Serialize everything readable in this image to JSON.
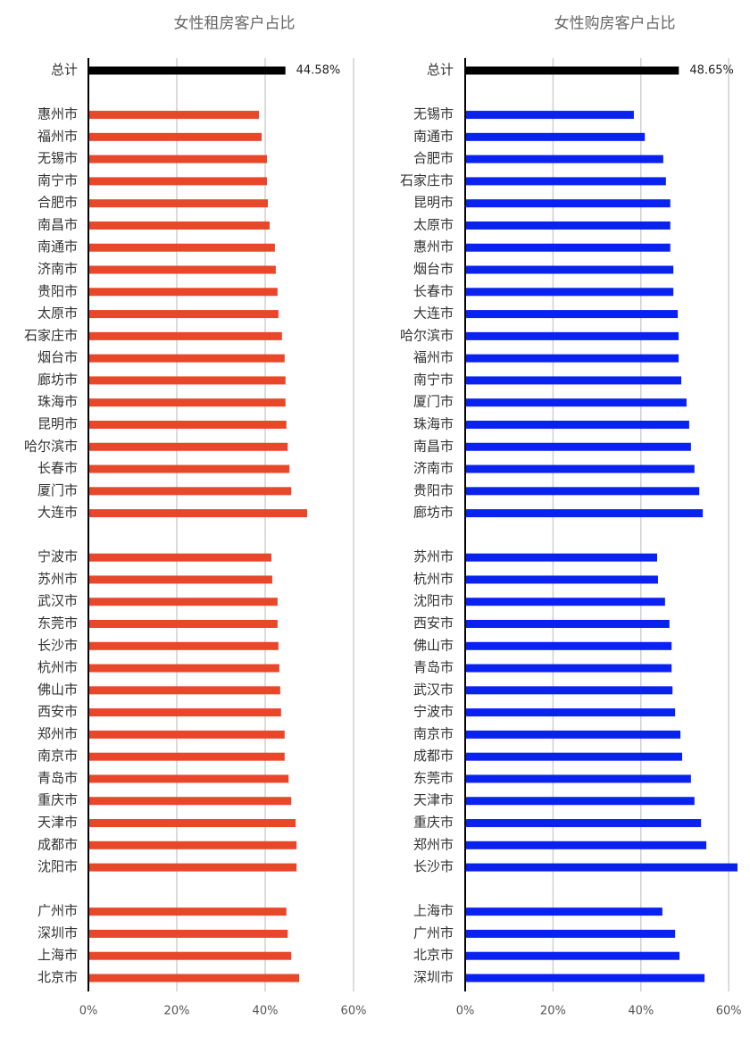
{
  "chart_data": [
    {
      "type": "hbar",
      "title": "女性租房客户占比",
      "categories": [
        "总计",
        null,
        "惠州市",
        "福州市",
        "无锡市",
        "南宁市",
        "合肥市",
        "南昌市",
        "南通市",
        "济南市",
        "贵阳市",
        "太原市",
        "石家庄市",
        "烟台市",
        "廊坊市",
        "珠海市",
        "昆明市",
        "哈尔滨市",
        "长春市",
        "厦门市",
        "大连市",
        null,
        "宁波市",
        "苏州市",
        "武汉市",
        "东莞市",
        "长沙市",
        "杭州市",
        "佛山市",
        "西安市",
        "郑州市",
        "南京市",
        "青岛市",
        "重庆市",
        "天津市",
        "成都市",
        "沈阳市",
        null,
        "广州市",
        "深圳市",
        "上海市",
        "北京市"
      ],
      "values": [
        44.58,
        null,
        38.6,
        39.2,
        40.4,
        40.4,
        40.6,
        41.0,
        42.2,
        42.4,
        42.8,
        43.0,
        43.8,
        44.4,
        44.6,
        44.6,
        44.8,
        45.1,
        45.5,
        45.9,
        49.5,
        null,
        41.4,
        41.6,
        42.8,
        42.8,
        43.0,
        43.2,
        43.4,
        43.6,
        44.4,
        44.4,
        45.3,
        45.9,
        46.9,
        47.1,
        47.1,
        null,
        44.8,
        45.1,
        45.9,
        47.7
      ],
      "value_labels": [
        "44.58%",
        null,
        null,
        null,
        null,
        null,
        null,
        null,
        null,
        null,
        null,
        null,
        null,
        null,
        null,
        null,
        null,
        null,
        null,
        null,
        null,
        null,
        null,
        null,
        null,
        null,
        null,
        null,
        null,
        null,
        null,
        null,
        null,
        null,
        null,
        null,
        null,
        null,
        null,
        null,
        null,
        null
      ],
      "color": "#e8472a",
      "total_color": "#000000",
      "xlim": [
        0,
        60
      ],
      "xticks": [
        {
          "value": 0,
          "label": "0%"
        },
        {
          "value": 20,
          "label": "20%"
        },
        {
          "value": 40,
          "label": "40%"
        },
        {
          "value": 60,
          "label": "60%"
        }
      ],
      "grid": true
    },
    {
      "type": "hbar",
      "title": "女性购房客户占比",
      "categories": [
        "总计",
        null,
        "无锡市",
        "南通市",
        "合肥市",
        "石家庄市",
        "昆明市",
        "太原市",
        "惠州市",
        "烟台市",
        "长春市",
        "大连市",
        "哈尔滨市",
        "福州市",
        "南宁市",
        "厦门市",
        "珠海市",
        "南昌市",
        "济南市",
        "贵阳市",
        "廊坊市",
        null,
        "苏州市",
        "杭州市",
        "沈阳市",
        "西安市",
        "佛山市",
        "青岛市",
        "武汉市",
        "宁波市",
        "南京市",
        "成都市",
        "东莞市",
        "天津市",
        "重庆市",
        "郑州市",
        "长沙市",
        null,
        "上海市",
        "广州市",
        "北京市",
        "深圳市"
      ],
      "values": [
        48.65,
        null,
        38.4,
        40.9,
        45.1,
        45.7,
        46.7,
        46.7,
        46.7,
        47.4,
        47.4,
        48.4,
        48.6,
        48.6,
        49.2,
        50.4,
        51.0,
        51.4,
        52.2,
        53.3,
        54.1,
        null,
        43.7,
        43.9,
        45.5,
        46.5,
        47.0,
        47.0,
        47.2,
        47.8,
        49.0,
        49.4,
        51.4,
        52.2,
        53.7,
        54.9,
        62.0,
        null,
        44.9,
        47.8,
        48.8,
        54.5
      ],
      "value_labels": [
        "48.65%",
        null,
        null,
        null,
        null,
        null,
        null,
        null,
        null,
        null,
        null,
        null,
        null,
        null,
        null,
        null,
        null,
        null,
        null,
        null,
        null,
        null,
        null,
        null,
        null,
        null,
        null,
        null,
        null,
        null,
        null,
        null,
        null,
        null,
        null,
        null,
        null,
        null,
        null,
        null,
        null,
        null
      ],
      "color": "#0a22f0",
      "total_color": "#000000",
      "xlim": [
        0,
        62
      ],
      "xticks": [
        {
          "value": 0,
          "label": "0%"
        },
        {
          "value": 20,
          "label": "20%"
        },
        {
          "value": 40,
          "label": "40%"
        },
        {
          "value": 60,
          "label": "60%"
        }
      ],
      "grid": true
    }
  ]
}
